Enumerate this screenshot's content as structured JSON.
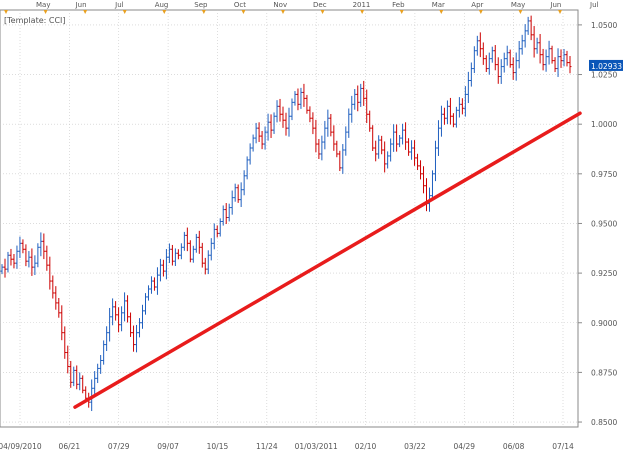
{
  "chart_data": {
    "type": "ohlc",
    "template_label": "[Template: CCI]",
    "price_label": "1.02933",
    "top_months": [
      "May",
      "Jun",
      "Jul",
      "Aug",
      "Sep",
      "Oct",
      "Nov",
      "Dec",
      "2011",
      "Feb",
      "Mar",
      "Apr",
      "May",
      "Jun",
      "Jul"
    ],
    "x_tick_labels": [
      "04/09/2010",
      "06/21",
      "07/29",
      "09/07",
      "10/15",
      "11/24",
      "01/03/2011",
      "02/10",
      "03/22",
      "04/29",
      "06/08",
      "07/14"
    ],
    "ylim": [
      0.8475,
      1.0575
    ],
    "y_ticks": [
      0.85,
      0.875,
      0.9,
      0.925,
      0.95,
      0.975,
      1.0,
      1.025,
      1.05
    ],
    "y_tick_labels": [
      "0.8500",
      "0.8750",
      "0.9000",
      "0.9250",
      "0.9500",
      "0.9750",
      "1.0000",
      "1.0250",
      "1.0500"
    ],
    "last_price": 1.02933,
    "colors": {
      "up": "#1f5fbf",
      "down": "#cc0000",
      "trend": "#e81c1c",
      "grid": "#c8c8c8",
      "label_bg": "#0b56b8"
    },
    "series": [
      {
        "values": [
          0.928,
          0.927,
          0.934,
          0.932,
          0.93,
          0.936,
          0.94,
          0.937,
          0.931,
          0.933,
          0.928,
          0.93,
          0.938,
          0.941,
          0.936,
          0.929,
          0.921,
          0.915,
          0.91,
          0.905,
          0.895,
          0.885,
          0.878,
          0.87,
          0.876,
          0.869,
          0.872,
          0.866,
          0.862,
          0.86,
          0.867,
          0.872,
          0.877,
          0.881,
          0.889,
          0.895,
          0.903,
          0.908,
          0.904,
          0.899,
          0.905,
          0.911,
          0.903,
          0.895,
          0.889,
          0.895,
          0.9,
          0.906,
          0.913,
          0.917,
          0.921,
          0.918,
          0.924,
          0.929,
          0.926,
          0.933,
          0.937,
          0.931,
          0.935,
          0.934,
          0.938,
          0.944,
          0.94,
          0.932,
          0.937,
          0.943,
          0.938,
          0.93,
          0.927,
          0.934,
          0.94,
          0.947,
          0.945,
          0.951,
          0.957,
          0.953,
          0.958,
          0.963,
          0.968,
          0.962,
          0.967,
          0.974,
          0.982,
          0.988,
          0.993,
          0.998,
          0.994,
          0.99,
          0.996,
          1.001,
          0.997,
          1.004,
          1.009,
          1.005,
          1.002,
          0.998,
          1.004,
          1.011,
          1.015,
          1.01,
          1.016,
          1.013,
          1.007,
          1.003,
          0.998,
          0.99,
          0.985,
          0.991,
          0.998,
          1.003,
          0.996,
          0.99,
          0.985,
          0.978,
          0.987,
          0.996,
          1.005,
          1.01,
          1.015,
          1.011,
          1.018,
          1.013,
          1.005,
          0.998,
          0.988,
          0.985,
          0.992,
          0.987,
          0.98,
          0.984,
          0.99,
          0.996,
          0.99,
          0.993,
          0.997,
          0.991,
          0.986,
          0.988,
          0.983,
          0.979,
          0.975,
          0.969,
          0.96,
          0.964,
          0.975,
          0.988,
          0.998,
          1.005,
          1.003,
          1.009,
          1.004,
          1.0,
          1.007,
          1.01,
          1.008,
          1.015,
          1.022,
          1.028,
          1.037,
          1.042,
          1.038,
          1.033,
          1.028,
          1.033,
          1.037,
          1.03,
          1.024,
          1.029,
          1.033,
          1.036,
          1.03,
          1.026,
          1.032,
          1.038,
          1.042,
          1.047,
          1.052,
          1.045,
          1.038,
          1.041,
          1.035,
          1.03,
          1.034,
          1.038,
          1.032,
          1.028,
          1.034,
          1.032,
          1.035,
          1.031,
          1.029
        ]
      }
    ]
  }
}
